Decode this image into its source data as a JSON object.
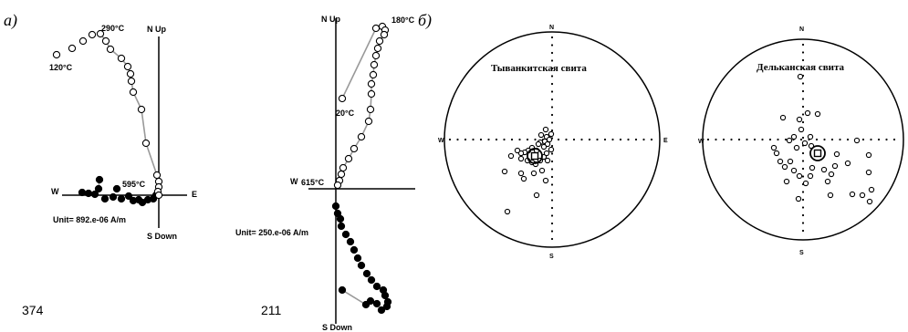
{
  "panels": {
    "a": "a)",
    "b": "б)"
  },
  "zijderveld_1": {
    "specimen": "374",
    "unit": "Unit= 892.e-06 A/m",
    "axes": {
      "north_up": "N  Up",
      "south_down": "S  Down",
      "west": "W",
      "east": "E"
    },
    "labels": {
      "t_low": "120°C",
      "t_peak": "290°C",
      "t_high": "595°C"
    },
    "open_points": [
      [
        62,
        60
      ],
      [
        79,
        53
      ],
      [
        91,
        45
      ],
      [
        101,
        38
      ],
      [
        110,
        37
      ],
      [
        116,
        45
      ],
      [
        121,
        54
      ],
      [
        133,
        64
      ],
      [
        140,
        73
      ],
      [
        143,
        81
      ],
      [
        144,
        89
      ],
      [
        146,
        101
      ],
      [
        155,
        120
      ],
      [
        160,
        157
      ],
      [
        172,
        192
      ],
      [
        174,
        199
      ],
      [
        174,
        205
      ],
      [
        173,
        210
      ],
      [
        174,
        214
      ]
    ],
    "filled_points": [
      [
        90,
        211
      ],
      [
        97,
        212
      ],
      [
        104,
        213
      ],
      [
        108,
        207
      ],
      [
        109,
        197
      ],
      [
        115,
        218
      ],
      [
        124,
        216
      ],
      [
        128,
        207
      ],
      [
        133,
        218
      ],
      [
        141,
        215
      ],
      [
        146,
        220
      ],
      [
        152,
        219
      ],
      [
        156,
        222
      ],
      [
        162,
        219
      ],
      [
        168,
        218
      ],
      [
        171,
        214
      ]
    ],
    "line_path": [
      [
        110,
        37
      ],
      [
        116,
        45
      ],
      [
        121,
        54
      ],
      [
        133,
        64
      ],
      [
        140,
        73
      ],
      [
        143,
        81
      ],
      [
        144,
        89
      ],
      [
        146,
        101
      ],
      [
        155,
        120
      ],
      [
        160,
        157
      ],
      [
        172,
        192
      ],
      [
        174,
        199
      ],
      [
        174,
        205
      ]
    ],
    "filled_path": [
      [
        104,
        213
      ],
      [
        108,
        207
      ],
      [
        109,
        197
      ]
    ]
  },
  "zijderveld_2": {
    "specimen": "211",
    "unit": "Unit= 250.e-06 A/m",
    "axes": {
      "north_up": "N  Up",
      "south_down": "S  Down",
      "west": "W"
    },
    "labels": {
      "t_low": "20°C",
      "t_peak": "180°C",
      "t_high": "615°C"
    },
    "open_points": [
      [
        412,
        31
      ],
      [
        419,
        29
      ],
      [
        422,
        33
      ],
      [
        421,
        38
      ],
      [
        416,
        45
      ],
      [
        414,
        53
      ],
      [
        412,
        61
      ],
      [
        410,
        71
      ],
      [
        409,
        82
      ],
      [
        407,
        92
      ],
      [
        407,
        103
      ],
      [
        406,
        120
      ],
      [
        404,
        133
      ],
      [
        396,
        150
      ],
      [
        388,
        163
      ],
      [
        382,
        174
      ],
      [
        376,
        184
      ],
      [
        374,
        191
      ],
      [
        372,
        198
      ],
      [
        370,
        203
      ],
      [
        375,
        108
      ]
    ],
    "filled_points": [
      [
        368,
        226
      ],
      [
        370,
        234
      ],
      [
        373,
        240
      ],
      [
        374,
        248
      ],
      [
        379,
        257
      ],
      [
        384,
        265
      ],
      [
        388,
        274
      ],
      [
        392,
        283
      ],
      [
        396,
        291
      ],
      [
        402,
        300
      ],
      [
        407,
        307
      ],
      [
        413,
        314
      ],
      [
        420,
        318
      ],
      [
        422,
        324
      ],
      [
        425,
        331
      ],
      [
        424,
        336
      ],
      [
        418,
        340
      ],
      [
        413,
        333
      ],
      [
        406,
        330
      ],
      [
        401,
        334
      ],
      [
        375,
        318
      ]
    ],
    "line_path": [
      [
        375,
        108
      ],
      [
        412,
        31
      ],
      [
        419,
        29
      ],
      [
        422,
        33
      ],
      [
        421,
        38
      ],
      [
        416,
        45
      ],
      [
        414,
        53
      ],
      [
        412,
        61
      ],
      [
        410,
        71
      ],
      [
        409,
        82
      ],
      [
        407,
        92
      ],
      [
        407,
        103
      ],
      [
        406,
        120
      ],
      [
        404,
        133
      ],
      [
        396,
        150
      ],
      [
        388,
        163
      ],
      [
        382,
        174
      ],
      [
        376,
        184
      ],
      [
        374,
        191
      ],
      [
        372,
        198
      ],
      [
        370,
        203
      ]
    ],
    "filled_path": [
      [
        401,
        334
      ],
      [
        375,
        318
      ]
    ]
  },
  "stereonet_1": {
    "title": "Тыванкитская свита",
    "labels": {
      "n": "N",
      "s": "S",
      "w": "W",
      "e": "E"
    },
    "center": [
      605,
      153
    ],
    "radius": 118,
    "mean": [
      586,
      171
    ],
    "points": [
      [
        598,
        142
      ],
      [
        593,
        148
      ],
      [
        599,
        150
      ],
      [
        604,
        147
      ],
      [
        597,
        155
      ],
      [
        592,
        156
      ],
      [
        600,
        158
      ],
      [
        596,
        161
      ],
      [
        590,
        158
      ],
      [
        588,
        165
      ],
      [
        583,
        162
      ],
      [
        579,
        165
      ],
      [
        575,
        167
      ],
      [
        571,
        168
      ],
      [
        567,
        165
      ],
      [
        571,
        174
      ],
      [
        578,
        176
      ],
      [
        583,
        178
      ],
      [
        587,
        180
      ],
      [
        592,
        176
      ],
      [
        596,
        172
      ],
      [
        599,
        168
      ],
      [
        594,
        187
      ],
      [
        585,
        190
      ],
      [
        574,
        196
      ],
      [
        571,
        190
      ],
      [
        560,
        171
      ],
      [
        553,
        188
      ],
      [
        556,
        232
      ],
      [
        588,
        214
      ],
      [
        598,
        198
      ],
      [
        600,
        176
      ],
      [
        604,
        164
      ],
      [
        602,
        153
      ]
    ]
  },
  "stereonet_2": {
    "title": "Дельканская свита",
    "labels": {
      "n": "N",
      "s": "S",
      "w": "W"
    },
    "center": [
      880,
      153
    ],
    "radius": 110,
    "mean": [
      896,
      168
    ],
    "points": [
      [
        877,
        84
      ],
      [
        858,
        129
      ],
      [
        876,
        131
      ],
      [
        885,
        124
      ],
      [
        878,
        142
      ],
      [
        888,
        150
      ],
      [
        870,
        150
      ],
      [
        865,
        154
      ],
      [
        882,
        157
      ],
      [
        889,
        160
      ],
      [
        873,
        162
      ],
      [
        848,
        162
      ],
      [
        851,
        168
      ],
      [
        855,
        177
      ],
      [
        860,
        183
      ],
      [
        866,
        177
      ],
      [
        870,
        187
      ],
      [
        862,
        199
      ],
      [
        876,
        193
      ],
      [
        883,
        201
      ],
      [
        888,
        193
      ],
      [
        890,
        184
      ],
      [
        903,
        186
      ],
      [
        911,
        191
      ],
      [
        907,
        199
      ],
      [
        915,
        182
      ],
      [
        917,
        169
      ],
      [
        929,
        179
      ],
      [
        939,
        154
      ],
      [
        952,
        170
      ],
      [
        952,
        189
      ],
      [
        945,
        214
      ],
      [
        955,
        208
      ],
      [
        953,
        221
      ],
      [
        934,
        213
      ],
      [
        910,
        214
      ],
      [
        875,
        218
      ],
      [
        896,
        125
      ]
    ]
  }
}
